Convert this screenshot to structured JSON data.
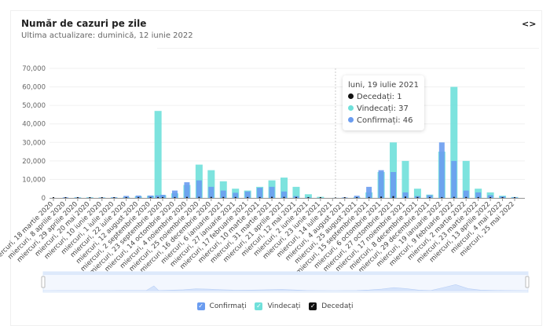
{
  "header": {
    "title": "Număr de cazuri pe zile",
    "subtitle": "Ultima actualizare: duminică, 12 iunie 2022",
    "embed_icon": "code-brackets-icon"
  },
  "colors": {
    "confirmed": "#6a9cf0",
    "recovered": "#6fe0da",
    "deceased": "#111111",
    "grid": "#f0f0f0",
    "navigator": "#dde9fb"
  },
  "tooltip": {
    "title": "luni, 19 iulie 2021",
    "rows": [
      {
        "label": "Decedați: 1",
        "color": "#111111"
      },
      {
        "label": "Vindecați: 37",
        "color": "#6fe0da"
      },
      {
        "label": "Confirmați: 46",
        "color": "#6a9cf0"
      }
    ]
  },
  "legend": [
    {
      "label": "Confirmați",
      "color": "#6a9cf0",
      "checked": true
    },
    {
      "label": "Vindecați",
      "color": "#6fe0da",
      "checked": true
    },
    {
      "label": "Decedați",
      "color": "#111111",
      "checked": true
    }
  ],
  "chart_data": {
    "type": "bar",
    "title": "Număr de cazuri pe zile",
    "ylim": [
      0,
      70000
    ],
    "yticks": [
      "0",
      "10,000",
      "20,000",
      "30,000",
      "40,000",
      "50,000",
      "60,000",
      "70,000"
    ],
    "ytick_values": [
      0,
      10000,
      20000,
      30000,
      40000,
      50000,
      60000,
      70000
    ],
    "grid": true,
    "legend": "bottom",
    "crosshair_date": "2021-07-19",
    "xticks": [
      {
        "date": "2020-03-18",
        "label": "miercuri, 18 martie 2020"
      },
      {
        "date": "2020-04-08",
        "label": "miercuri, 8 aprilie 2020"
      },
      {
        "date": "2020-04-29",
        "label": "miercuri, 29 aprilie 2020"
      },
      {
        "date": "2020-05-20",
        "label": "miercuri, 20 mai 2020"
      },
      {
        "date": "2020-06-10",
        "label": "miercuri, 10 iunie 2020"
      },
      {
        "date": "2020-07-01",
        "label": "miercuri, 1 iulie 2020"
      },
      {
        "date": "2020-07-22",
        "label": "miercuri, 22 iulie 2020"
      },
      {
        "date": "2020-08-12",
        "label": "miercuri, 12 august 2020"
      },
      {
        "date": "2020-09-02",
        "label": "miercuri, 2 septembrie 2020"
      },
      {
        "date": "2020-09-23",
        "label": "miercuri, 23 septembrie 2020"
      },
      {
        "date": "2020-10-14",
        "label": "miercuri, 14 octombrie 2020"
      },
      {
        "date": "2020-11-04",
        "label": "miercuri, 4 noiembrie 2020"
      },
      {
        "date": "2020-11-25",
        "label": "miercuri, 25 noiembrie 2020"
      },
      {
        "date": "2020-12-16",
        "label": "miercuri, 16 decembrie 2020"
      },
      {
        "date": "2021-01-06",
        "label": "miercuri, 6 ianuarie 2021"
      },
      {
        "date": "2021-01-27",
        "label": "miercuri, 27 ianuarie 2021"
      },
      {
        "date": "2021-02-17",
        "label": "miercuri, 17 februarie 2021"
      },
      {
        "date": "2021-03-10",
        "label": "miercuri, 10 martie 2021"
      },
      {
        "date": "2021-03-31",
        "label": "miercuri, 31 martie 2021"
      },
      {
        "date": "2021-04-21",
        "label": "miercuri, 21 aprilie 2021"
      },
      {
        "date": "2021-05-12",
        "label": "miercuri, 12 mai 2021"
      },
      {
        "date": "2021-06-02",
        "label": "miercuri, 2 iunie 2021"
      },
      {
        "date": "2021-06-23",
        "label": "miercuri, 23 iunie 2021"
      },
      {
        "date": "2021-07-14",
        "label": "miercuri, 14 iulie 2021"
      },
      {
        "date": "2021-08-04",
        "label": "miercuri, 4 august 2021"
      },
      {
        "date": "2021-08-25",
        "label": "miercuri, 25 august 2021"
      },
      {
        "date": "2021-09-15",
        "label": "miercuri, 15 septembrie 2021"
      },
      {
        "date": "2021-10-06",
        "label": "miercuri, 6 octombrie 2021"
      },
      {
        "date": "2021-10-27",
        "label": "miercuri, 27 octombrie 2021"
      },
      {
        "date": "2021-11-17",
        "label": "miercuri, 17 noiembrie 2021"
      },
      {
        "date": "2021-12-08",
        "label": "miercuri, 8 decembrie 2021"
      },
      {
        "date": "2021-12-29",
        "label": "miercuri, 29 decembrie 2021"
      },
      {
        "date": "2022-01-19",
        "label": "miercuri, 19 ianuarie 2022"
      },
      {
        "date": "2022-02-09",
        "label": "miercuri, 9 februarie 2022"
      },
      {
        "date": "2022-03-02",
        "label": "miercuri, 2 martie 2022"
      },
      {
        "date": "2022-03-23",
        "label": "miercuri, 23 martie 2022"
      },
      {
        "date": "2022-04-13",
        "label": "miercuri, 13 aprilie 2022"
      },
      {
        "date": "2022-05-04",
        "label": "miercuri, 4 mai 2022"
      },
      {
        "date": "2022-05-25",
        "label": "miercuri, 25 mai 2022"
      }
    ],
    "series_names": [
      "Confirmați",
      "Vindecați",
      "Decedați"
    ],
    "points": [
      {
        "date": "2020-03-18",
        "confirmed": 50,
        "recovered": 5,
        "deceased": 1
      },
      {
        "date": "2020-04-08",
        "confirmed": 350,
        "recovered": 60,
        "deceased": 20
      },
      {
        "date": "2020-04-29",
        "confirmed": 300,
        "recovered": 300,
        "deceased": 20
      },
      {
        "date": "2020-05-20",
        "confirmed": 200,
        "recovered": 350,
        "deceased": 12
      },
      {
        "date": "2020-06-10",
        "confirmed": 250,
        "recovered": 250,
        "deceased": 10
      },
      {
        "date": "2020-07-01",
        "confirmed": 400,
        "recovered": 300,
        "deceased": 15
      },
      {
        "date": "2020-07-22",
        "confirmed": 1100,
        "recovered": 400,
        "deceased": 30
      },
      {
        "date": "2020-08-12",
        "confirmed": 1300,
        "recovered": 900,
        "deceased": 45
      },
      {
        "date": "2020-09-02",
        "confirmed": 1300,
        "recovered": 1200,
        "deceased": 40
      },
      {
        "date": "2020-09-15",
        "confirmed": 1400,
        "recovered": 47000,
        "deceased": 50
      },
      {
        "date": "2020-09-23",
        "confirmed": 1700,
        "recovered": 1500,
        "deceased": 50
      },
      {
        "date": "2020-10-14",
        "confirmed": 4000,
        "recovered": 2500,
        "deceased": 70
      },
      {
        "date": "2020-11-04",
        "confirmed": 8500,
        "recovered": 7000,
        "deceased": 150
      },
      {
        "date": "2020-11-25",
        "confirmed": 9500,
        "recovered": 18000,
        "deceased": 170
      },
      {
        "date": "2020-12-16",
        "confirmed": 6000,
        "recovered": 15000,
        "deceased": 150
      },
      {
        "date": "2021-01-06",
        "confirmed": 4000,
        "recovered": 9000,
        "deceased": 120
      },
      {
        "date": "2021-01-27",
        "confirmed": 2800,
        "recovered": 5000,
        "deceased": 90
      },
      {
        "date": "2021-02-17",
        "confirmed": 3500,
        "recovered": 4000,
        "deceased": 70
      },
      {
        "date": "2021-03-10",
        "confirmed": 5500,
        "recovered": 6000,
        "deceased": 90
      },
      {
        "date": "2021-03-31",
        "confirmed": 6000,
        "recovered": 9500,
        "deceased": 180
      },
      {
        "date": "2021-04-21",
        "confirmed": 3500,
        "recovered": 11000,
        "deceased": 150
      },
      {
        "date": "2021-05-12",
        "confirmed": 1000,
        "recovered": 6000,
        "deceased": 80
      },
      {
        "date": "2021-06-02",
        "confirmed": 300,
        "recovered": 2000,
        "deceased": 40
      },
      {
        "date": "2021-06-23",
        "confirmed": 80,
        "recovered": 600,
        "deceased": 10
      },
      {
        "date": "2021-07-19",
        "confirmed": 46,
        "recovered": 37,
        "deceased": 1
      },
      {
        "date": "2021-08-04",
        "confirmed": 300,
        "recovered": 100,
        "deceased": 5
      },
      {
        "date": "2021-08-25",
        "confirmed": 1200,
        "recovered": 400,
        "deceased": 20
      },
      {
        "date": "2021-09-15",
        "confirmed": 6000,
        "recovered": 3000,
        "deceased": 90
      },
      {
        "date": "2021-10-06",
        "confirmed": 15000,
        "recovered": 14000,
        "deceased": 300
      },
      {
        "date": "2021-10-27",
        "confirmed": 14000,
        "recovered": 30000,
        "deceased": 550
      },
      {
        "date": "2021-11-17",
        "confirmed": 3000,
        "recovered": 20000,
        "deceased": 300
      },
      {
        "date": "2021-12-08",
        "confirmed": 1000,
        "recovered": 5000,
        "deceased": 100
      },
      {
        "date": "2021-12-29",
        "confirmed": 1500,
        "recovered": 1800,
        "deceased": 50
      },
      {
        "date": "2022-01-19",
        "confirmed": 30000,
        "recovered": 25000,
        "deceased": 50
      },
      {
        "date": "2022-02-09",
        "confirmed": 20000,
        "recovered": 60000,
        "deceased": 150
      },
      {
        "date": "2022-03-02",
        "confirmed": 4000,
        "recovered": 20000,
        "deceased": 100
      },
      {
        "date": "2022-03-23",
        "confirmed": 3000,
        "recovered": 5000,
        "deceased": 60
      },
      {
        "date": "2022-04-13",
        "confirmed": 1500,
        "recovered": 3000,
        "deceased": 40
      },
      {
        "date": "2022-05-04",
        "confirmed": 800,
        "recovered": 1200,
        "deceased": 20
      },
      {
        "date": "2022-05-25",
        "confirmed": 400,
        "recovered": 500,
        "deceased": 10
      }
    ]
  }
}
